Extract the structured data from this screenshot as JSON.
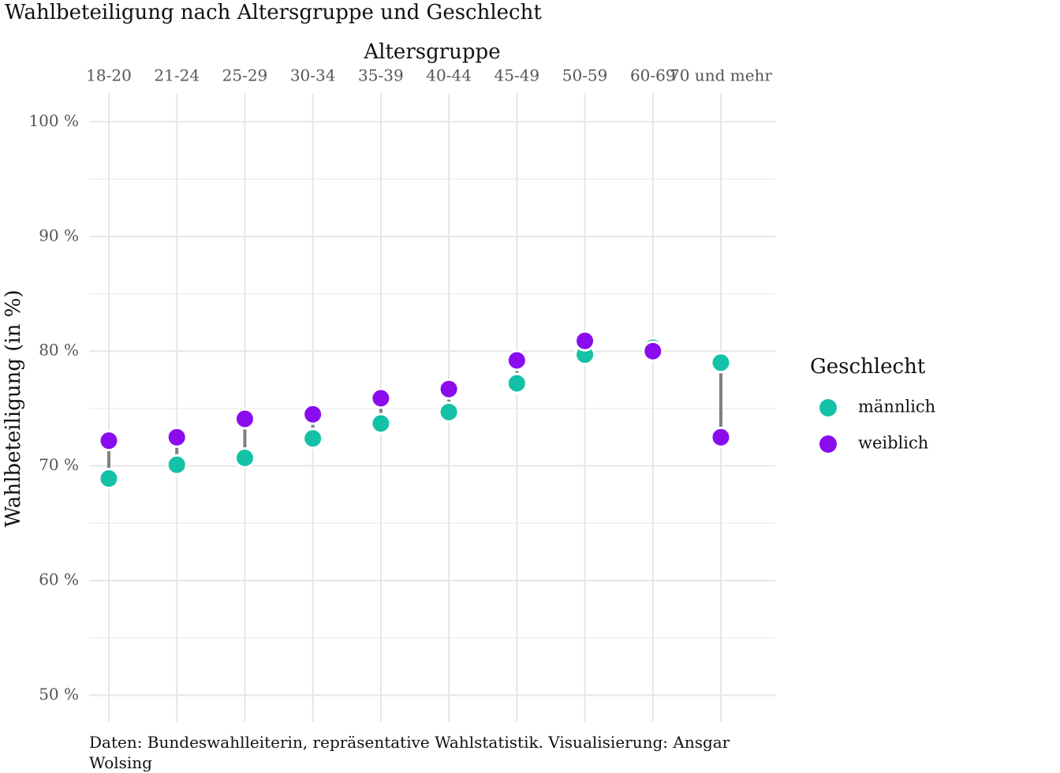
{
  "chart_data": {
    "type": "dumbbell",
    "title": "Wahlbeteiligung nach Altersgruppe und Geschlecht",
    "x_label": "Altersgruppe",
    "y_label": "Wahlbeteiligung (in %)",
    "caption": "Daten: Bundeswahlleiterin, repräsentative Wahlstatistik. Visualisierung: Ansgar Wolsing",
    "categories": [
      "18-20",
      "21-24",
      "25-29",
      "30-34",
      "35-39",
      "40-44",
      "45-49",
      "50-59",
      "60-69",
      "70 und mehr"
    ],
    "series": [
      {
        "name": "männlich",
        "color": "#13c2a6",
        "values": [
          68.9,
          70.1,
          70.7,
          72.4,
          73.7,
          74.7,
          77.2,
          79.7,
          80.3,
          79.0
        ]
      },
      {
        "name": "weiblich",
        "color": "#8a0cee",
        "values": [
          72.2,
          72.5,
          74.1,
          74.5,
          75.9,
          76.7,
          79.2,
          80.9,
          80.0,
          72.5
        ]
      }
    ],
    "ylim": [
      47.7,
      102.5
    ],
    "yticks": [
      {
        "value": 50,
        "label": "50 %"
      },
      {
        "value": 60,
        "label": "60 %"
      },
      {
        "value": 70,
        "label": "70 %"
      },
      {
        "value": 80,
        "label": "80 %"
      },
      {
        "value": 90,
        "label": "90 %"
      },
      {
        "value": 100,
        "label": "100 %"
      }
    ],
    "grid": true,
    "legend_title": "Geschlecht",
    "legend_position": "right"
  }
}
